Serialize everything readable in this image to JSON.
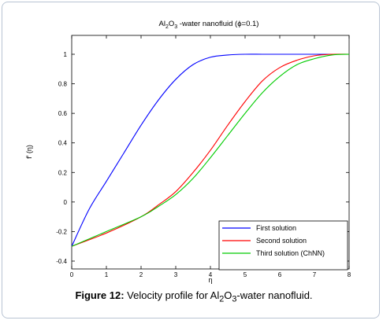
{
  "chart_data": {
    "type": "line",
    "title": {
      "prefix": "Al",
      "sub1": "2",
      "mid": "O",
      "sub2": "3",
      "rest": " -water nanofluid (",
      "phi": "ϕ",
      "suffix": "=0.1)"
    },
    "xlabel": "η",
    "ylabel": "f′ (η)",
    "xlim": [
      0,
      8
    ],
    "ylim": [
      -0.4,
      1.1
    ],
    "xticks": [
      "0",
      "1",
      "2",
      "3",
      "4",
      "5",
      "6",
      "7",
      "8"
    ],
    "yticks": [
      "-0.4",
      "-0.2",
      "0",
      "0.2",
      "0.4",
      "0.6",
      "0.8",
      "1"
    ],
    "grid": false,
    "legend_position": "bottom-right",
    "series": [
      {
        "name": "First solution",
        "color": "#0000ff",
        "x": [
          0,
          0.5,
          1,
          1.5,
          2,
          2.5,
          3,
          3.5,
          4,
          4.5,
          5,
          5.5,
          6,
          7,
          8
        ],
        "y": [
          -0.3,
          -0.05,
          0.14,
          0.33,
          0.52,
          0.69,
          0.83,
          0.93,
          0.98,
          0.995,
          1.0,
          1.0,
          1.0,
          1.0,
          1.0
        ]
      },
      {
        "name": "Second  solution",
        "color": "#ff0000",
        "x": [
          0,
          1,
          2,
          2.5,
          3,
          3.5,
          4,
          4.5,
          5,
          5.5,
          6,
          6.5,
          7,
          7.5,
          8
        ],
        "y": [
          -0.3,
          -0.21,
          -0.1,
          -0.02,
          0.07,
          0.2,
          0.35,
          0.52,
          0.68,
          0.82,
          0.91,
          0.96,
          0.99,
          1.0,
          1.0
        ]
      },
      {
        "name": "Third solution (ChNN)",
        "color": "#00cc00",
        "x": [
          0,
          1,
          2,
          2.5,
          3,
          3.5,
          4,
          4.5,
          5,
          5.5,
          6,
          6.5,
          7,
          7.5,
          8
        ],
        "y": [
          -0.3,
          -0.2,
          -0.1,
          -0.03,
          0.05,
          0.16,
          0.3,
          0.45,
          0.6,
          0.74,
          0.85,
          0.93,
          0.97,
          0.995,
          1.0
        ]
      }
    ]
  },
  "caption": {
    "label": "Figure 12:",
    "text_a": " Velocity profile for Al",
    "sub1": "2",
    "text_b": "O",
    "sub2": "3",
    "text_c": "-water nanofluid."
  }
}
